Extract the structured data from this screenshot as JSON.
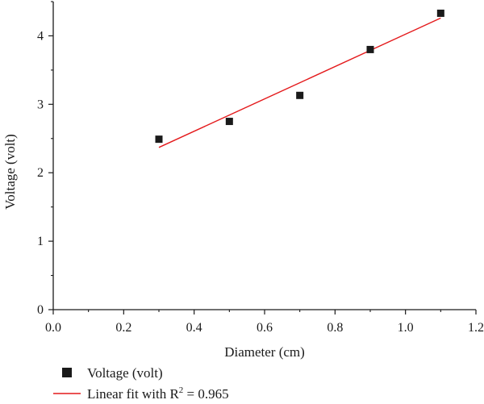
{
  "chart_data": {
    "type": "scatter",
    "xlabel": "Diameter (cm)",
    "ylabel": "Voltage (volt)",
    "xlim": [
      0.0,
      1.2
    ],
    "ylim": [
      0,
      4.5
    ],
    "x_ticks": [
      "0.0",
      "0.2",
      "0.4",
      "0.6",
      "0.8",
      "1.0",
      "1.2"
    ],
    "y_ticks": [
      "0",
      "1",
      "2",
      "3",
      "4"
    ],
    "grid": false,
    "legend_position": "bottom-left",
    "series": [
      {
        "name": "Voltage (volt)",
        "kind": "scatter",
        "marker": "square",
        "color": "#1a1a1a",
        "x": [
          0.3,
          0.5,
          0.7,
          0.9,
          1.1
        ],
        "y": [
          2.49,
          2.75,
          3.13,
          3.8,
          4.33
        ]
      },
      {
        "name": "Linear fit with R",
        "kind": "line",
        "color": "#e41a1c",
        "x": [
          0.3,
          1.1
        ],
        "y": [
          2.37,
          4.26
        ],
        "r_squared": "0.965",
        "legend_suffix_sup": "2",
        "legend_suffix": " = 0.965"
      }
    ]
  }
}
